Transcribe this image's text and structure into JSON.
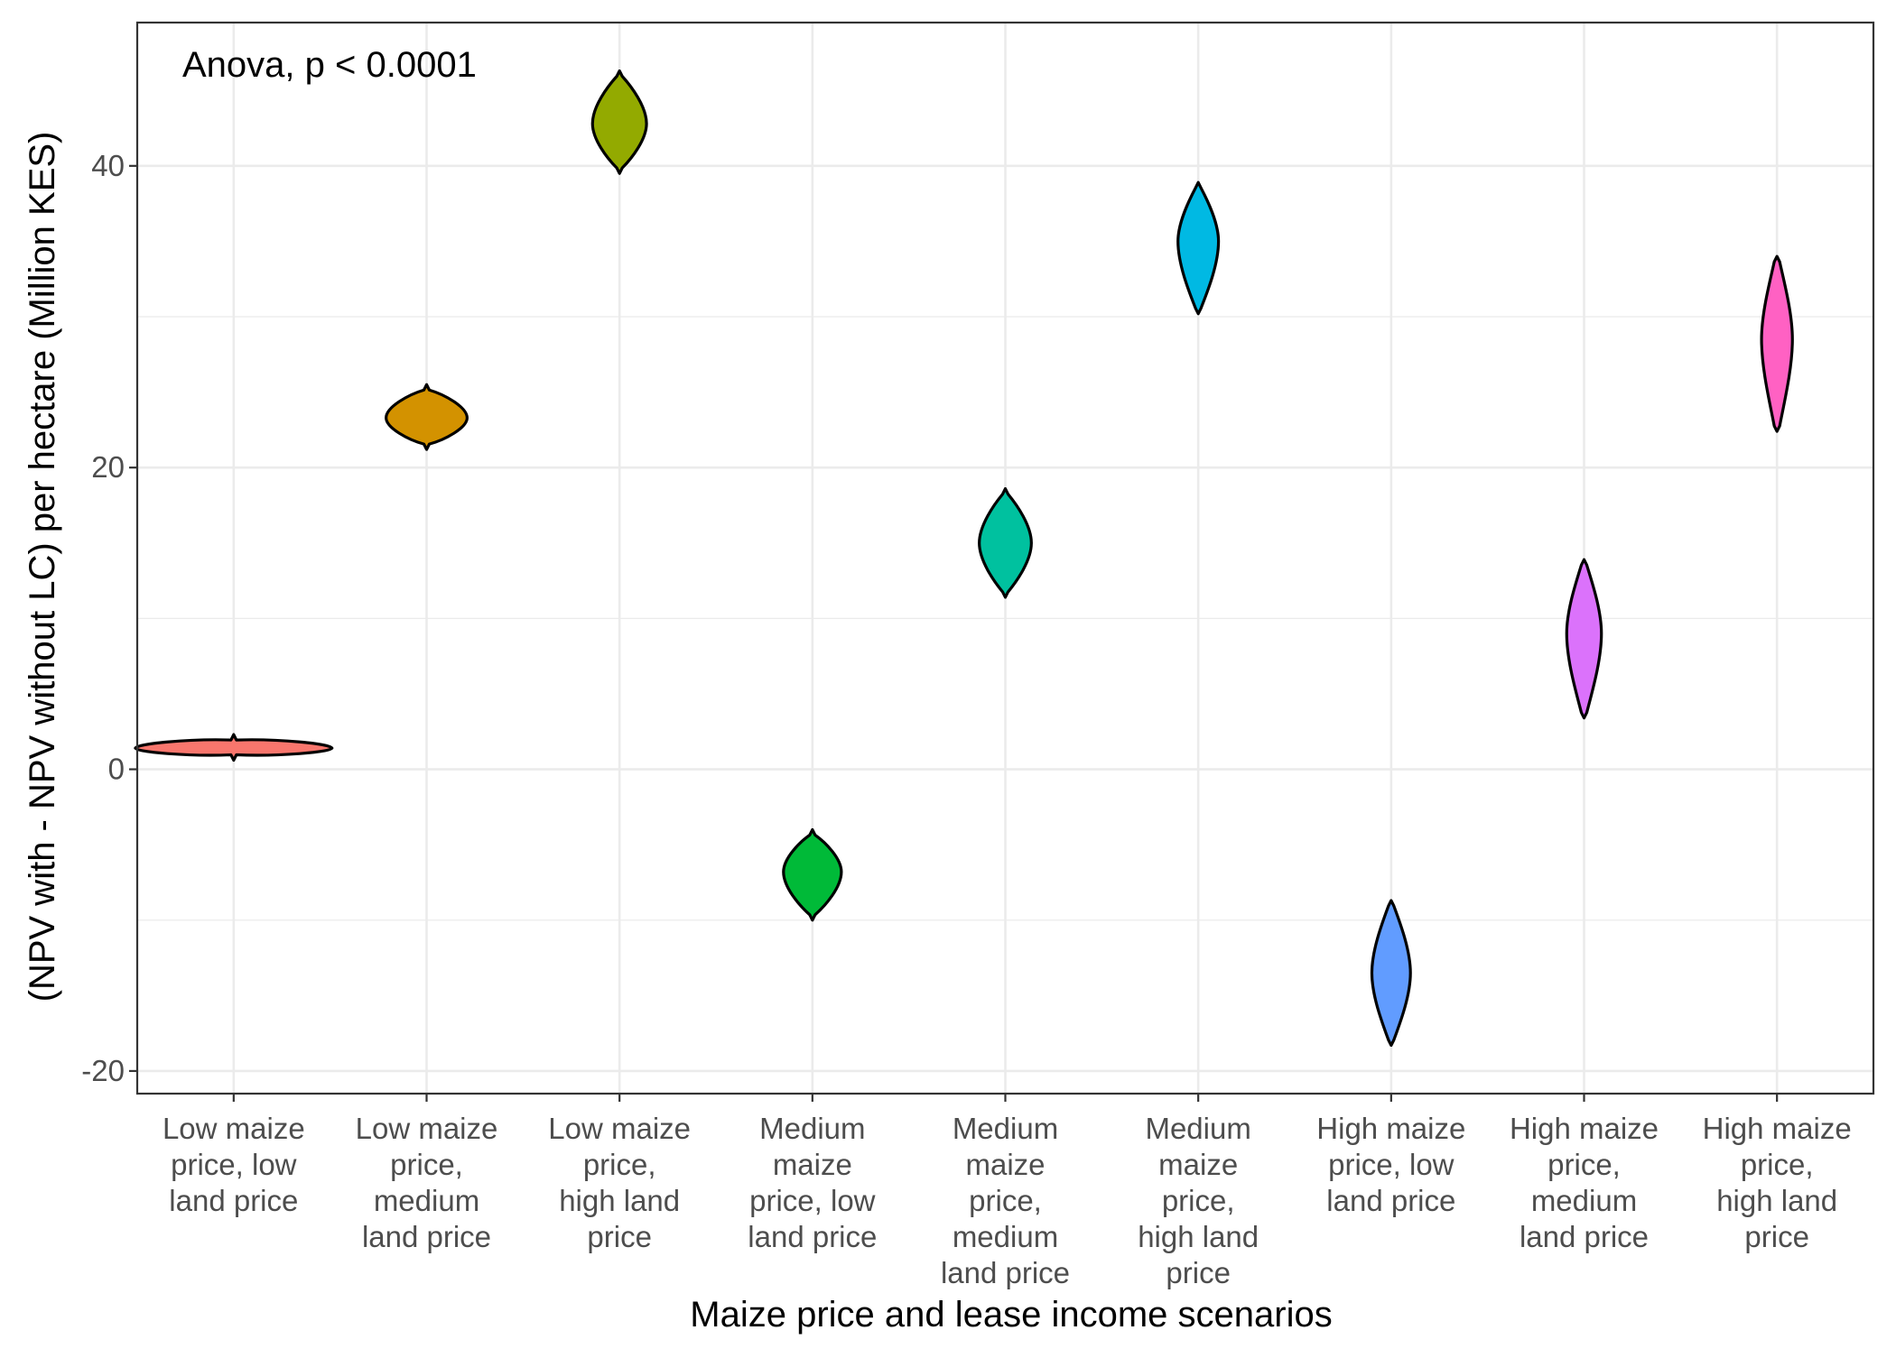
{
  "chart_data": {
    "type": "violin",
    "annotation": "Anova, p < 0.0001",
    "xlabel": "Maize price and lease income scenarios",
    "ylabel": "(NPV with - NPV without LC) per hectare (Million KES)",
    "ylim": [
      -21.5,
      49.5
    ],
    "yticks": [
      -20,
      0,
      20,
      40
    ],
    "ytick_labels": [
      "-20",
      "0",
      "20",
      "40"
    ],
    "grid": true,
    "legend": "none",
    "categories": [
      {
        "label_lines": [
          "Low maize",
          "price, low",
          "land price"
        ],
        "min": 0.6,
        "max": 2.3,
        "center": 1.4,
        "half_width": 0.51,
        "color": "#F8766D"
      },
      {
        "label_lines": [
          "Low maize",
          "price,",
          "medium",
          "land price"
        ],
        "min": 21.2,
        "max": 25.5,
        "center": 23.3,
        "half_width": 0.21,
        "color": "#D39200"
      },
      {
        "label_lines": [
          "Low maize",
          "price,",
          "high land",
          "price"
        ],
        "min": 39.5,
        "max": 46.3,
        "center": 42.8,
        "half_width": 0.14,
        "color": "#93AA00"
      },
      {
        "label_lines": [
          "Medium",
          "maize",
          "price, low",
          "land price"
        ],
        "min": -10.0,
        "max": -4.0,
        "center": -6.8,
        "half_width": 0.15,
        "color": "#00BA38"
      },
      {
        "label_lines": [
          "Medium",
          "maize",
          "price,",
          "medium",
          "land price"
        ],
        "min": 11.4,
        "max": 18.6,
        "center": 15.0,
        "half_width": 0.135,
        "color": "#00C19F"
      },
      {
        "label_lines": [
          "Medium",
          "maize",
          "price,",
          "high land",
          "price"
        ],
        "min": 30.2,
        "max": 38.9,
        "center": 35.0,
        "half_width": 0.105,
        "color": "#00B9E3"
      },
      {
        "label_lines": [
          "High maize",
          "price, low",
          "land price"
        ],
        "min": -18.3,
        "max": -8.7,
        "center": -13.5,
        "half_width": 0.1,
        "color": "#619CFF"
      },
      {
        "label_lines": [
          "High maize",
          "price,",
          "medium",
          "land price"
        ],
        "min": 3.4,
        "max": 13.9,
        "center": 9.0,
        "half_width": 0.09,
        "color": "#DB72FB"
      },
      {
        "label_lines": [
          "High maize",
          "price,",
          "high land",
          "price"
        ],
        "min": 22.4,
        "max": 34.0,
        "center": 28.5,
        "half_width": 0.08,
        "color": "#FF61C3"
      }
    ]
  }
}
